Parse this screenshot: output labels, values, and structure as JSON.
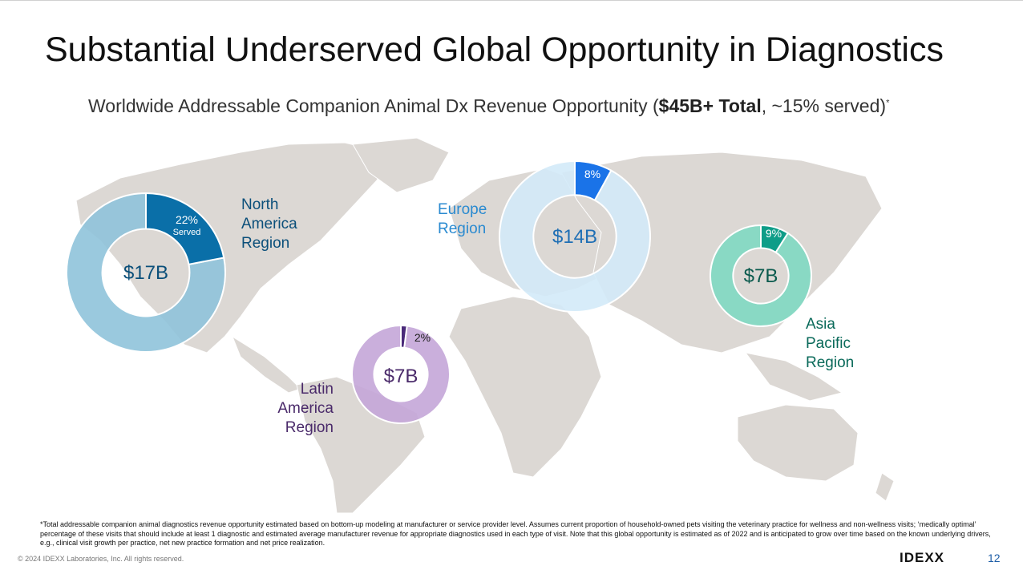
{
  "slide": {
    "title": "Substantial Underserved Global Opportunity in Diagnostics",
    "subtitle_prefix": "Worldwide Addressable Companion Animal Dx Revenue Opportunity (",
    "subtitle_bold": "$45B+ Total",
    "subtitle_suffix": ", ~15% served)",
    "subtitle_mark": "*",
    "footnote": "*Total addressable companion animal diagnostics revenue opportunity estimated based on bottom-up modeling at manufacturer or service provider level. Assumes current proportion of household-owned pets visiting the veterinary practice for wellness and non-wellness visits; ‘medically optimal’ percentage of these visits that should include at least 1 diagnostic and estimated average manufacturer revenue for appropriate diagnostics used in each type of visit. Note that this global opportunity is estimated as of 2022 and is anticipated to grow over time based on the known underlying drivers, e.g., clinical visit growth per practice, net new practice formation and net price realization.",
    "copyright": "© 2024 IDEXX Laboratories, Inc. All rights reserved.",
    "logo": "IDEXX",
    "page_number": "12"
  },
  "chart_data": {
    "type": "pie",
    "title": "Worldwide Addressable Companion Animal Dx Revenue Opportunity",
    "total": "$45B+",
    "served_total_pct": 15,
    "regions": [
      {
        "key": "na",
        "name": "North America Region",
        "name_lines": [
          "North",
          "America",
          "Region"
        ],
        "total_label": "$17B",
        "total_b": 17,
        "served_pct": 22,
        "served_label": "22%",
        "served_word": "Served",
        "served_color": "#0a6fa8",
        "rest_color": "#8fc3da",
        "label_color": "#0b4f7a"
      },
      {
        "key": "eu",
        "name": "Europe Region",
        "name_lines": [
          "Europe",
          "Region"
        ],
        "total_label": "$14B",
        "total_b": 14,
        "served_pct": 8,
        "served_label": "8%",
        "served_color": "#1a73e8",
        "rest_color": "#d3eaf8",
        "label_color": "#2a8ad0"
      },
      {
        "key": "ap",
        "name": "Asia Pacific Region",
        "name_lines": [
          "Asia",
          "Pacific",
          "Region"
        ],
        "total_label": "$7B",
        "total_b": 7,
        "served_pct": 9,
        "served_label": "9%",
        "served_color": "#0e9d88",
        "rest_color": "#7fd9c2",
        "label_color": "#0a6a5a"
      },
      {
        "key": "la",
        "name": "Latin America Region",
        "name_lines": [
          "Latin",
          "America",
          "Region"
        ],
        "total_label": "$7B",
        "total_b": 7,
        "served_pct": 2,
        "served_label": "2%",
        "served_color": "#4a2a7a",
        "rest_color": "#c4a6d8",
        "label_color": "#4a2a6a"
      }
    ]
  }
}
